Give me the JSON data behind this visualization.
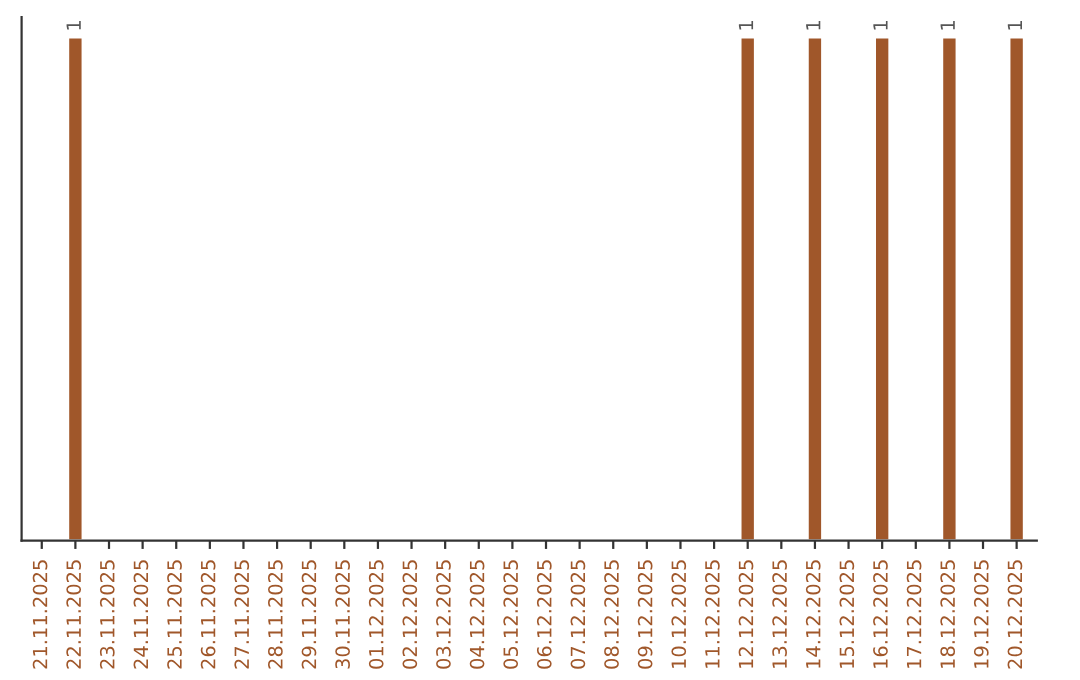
{
  "chart_data": {
    "type": "bar",
    "categories": [
      "21.11.2025",
      "22.11.2025",
      "23.11.2025",
      "24.11.2025",
      "25.11.2025",
      "26.11.2025",
      "27.11.2025",
      "28.11.2025",
      "29.11.2025",
      "30.11.2025",
      "01.12.2025",
      "02.12.2025",
      "03.12.2025",
      "04.12.2025",
      "05.12.2025",
      "06.12.2025",
      "07.12.2025",
      "08.12.2025",
      "09.12.2025",
      "10.12.2025",
      "11.12.2025",
      "12.12.2025",
      "13.12.2025",
      "14.12.2025",
      "15.12.2025",
      "16.12.2025",
      "17.12.2025",
      "18.12.2025",
      "19.12.2025",
      "20.12.2025"
    ],
    "values": [
      null,
      1,
      null,
      null,
      null,
      null,
      null,
      null,
      null,
      null,
      null,
      null,
      null,
      null,
      null,
      null,
      null,
      null,
      null,
      null,
      null,
      1,
      null,
      1,
      null,
      1,
      null,
      1,
      null,
      1
    ],
    "value_labels": [
      null,
      "1",
      null,
      null,
      null,
      null,
      null,
      null,
      null,
      null,
      null,
      null,
      null,
      null,
      null,
      null,
      null,
      null,
      null,
      null,
      null,
      "1",
      null,
      "1",
      null,
      "1",
      null,
      "1",
      null,
      "1"
    ],
    "color": "#a0572a",
    "tick_labels": "x",
    "grid": false,
    "legend": false
  }
}
